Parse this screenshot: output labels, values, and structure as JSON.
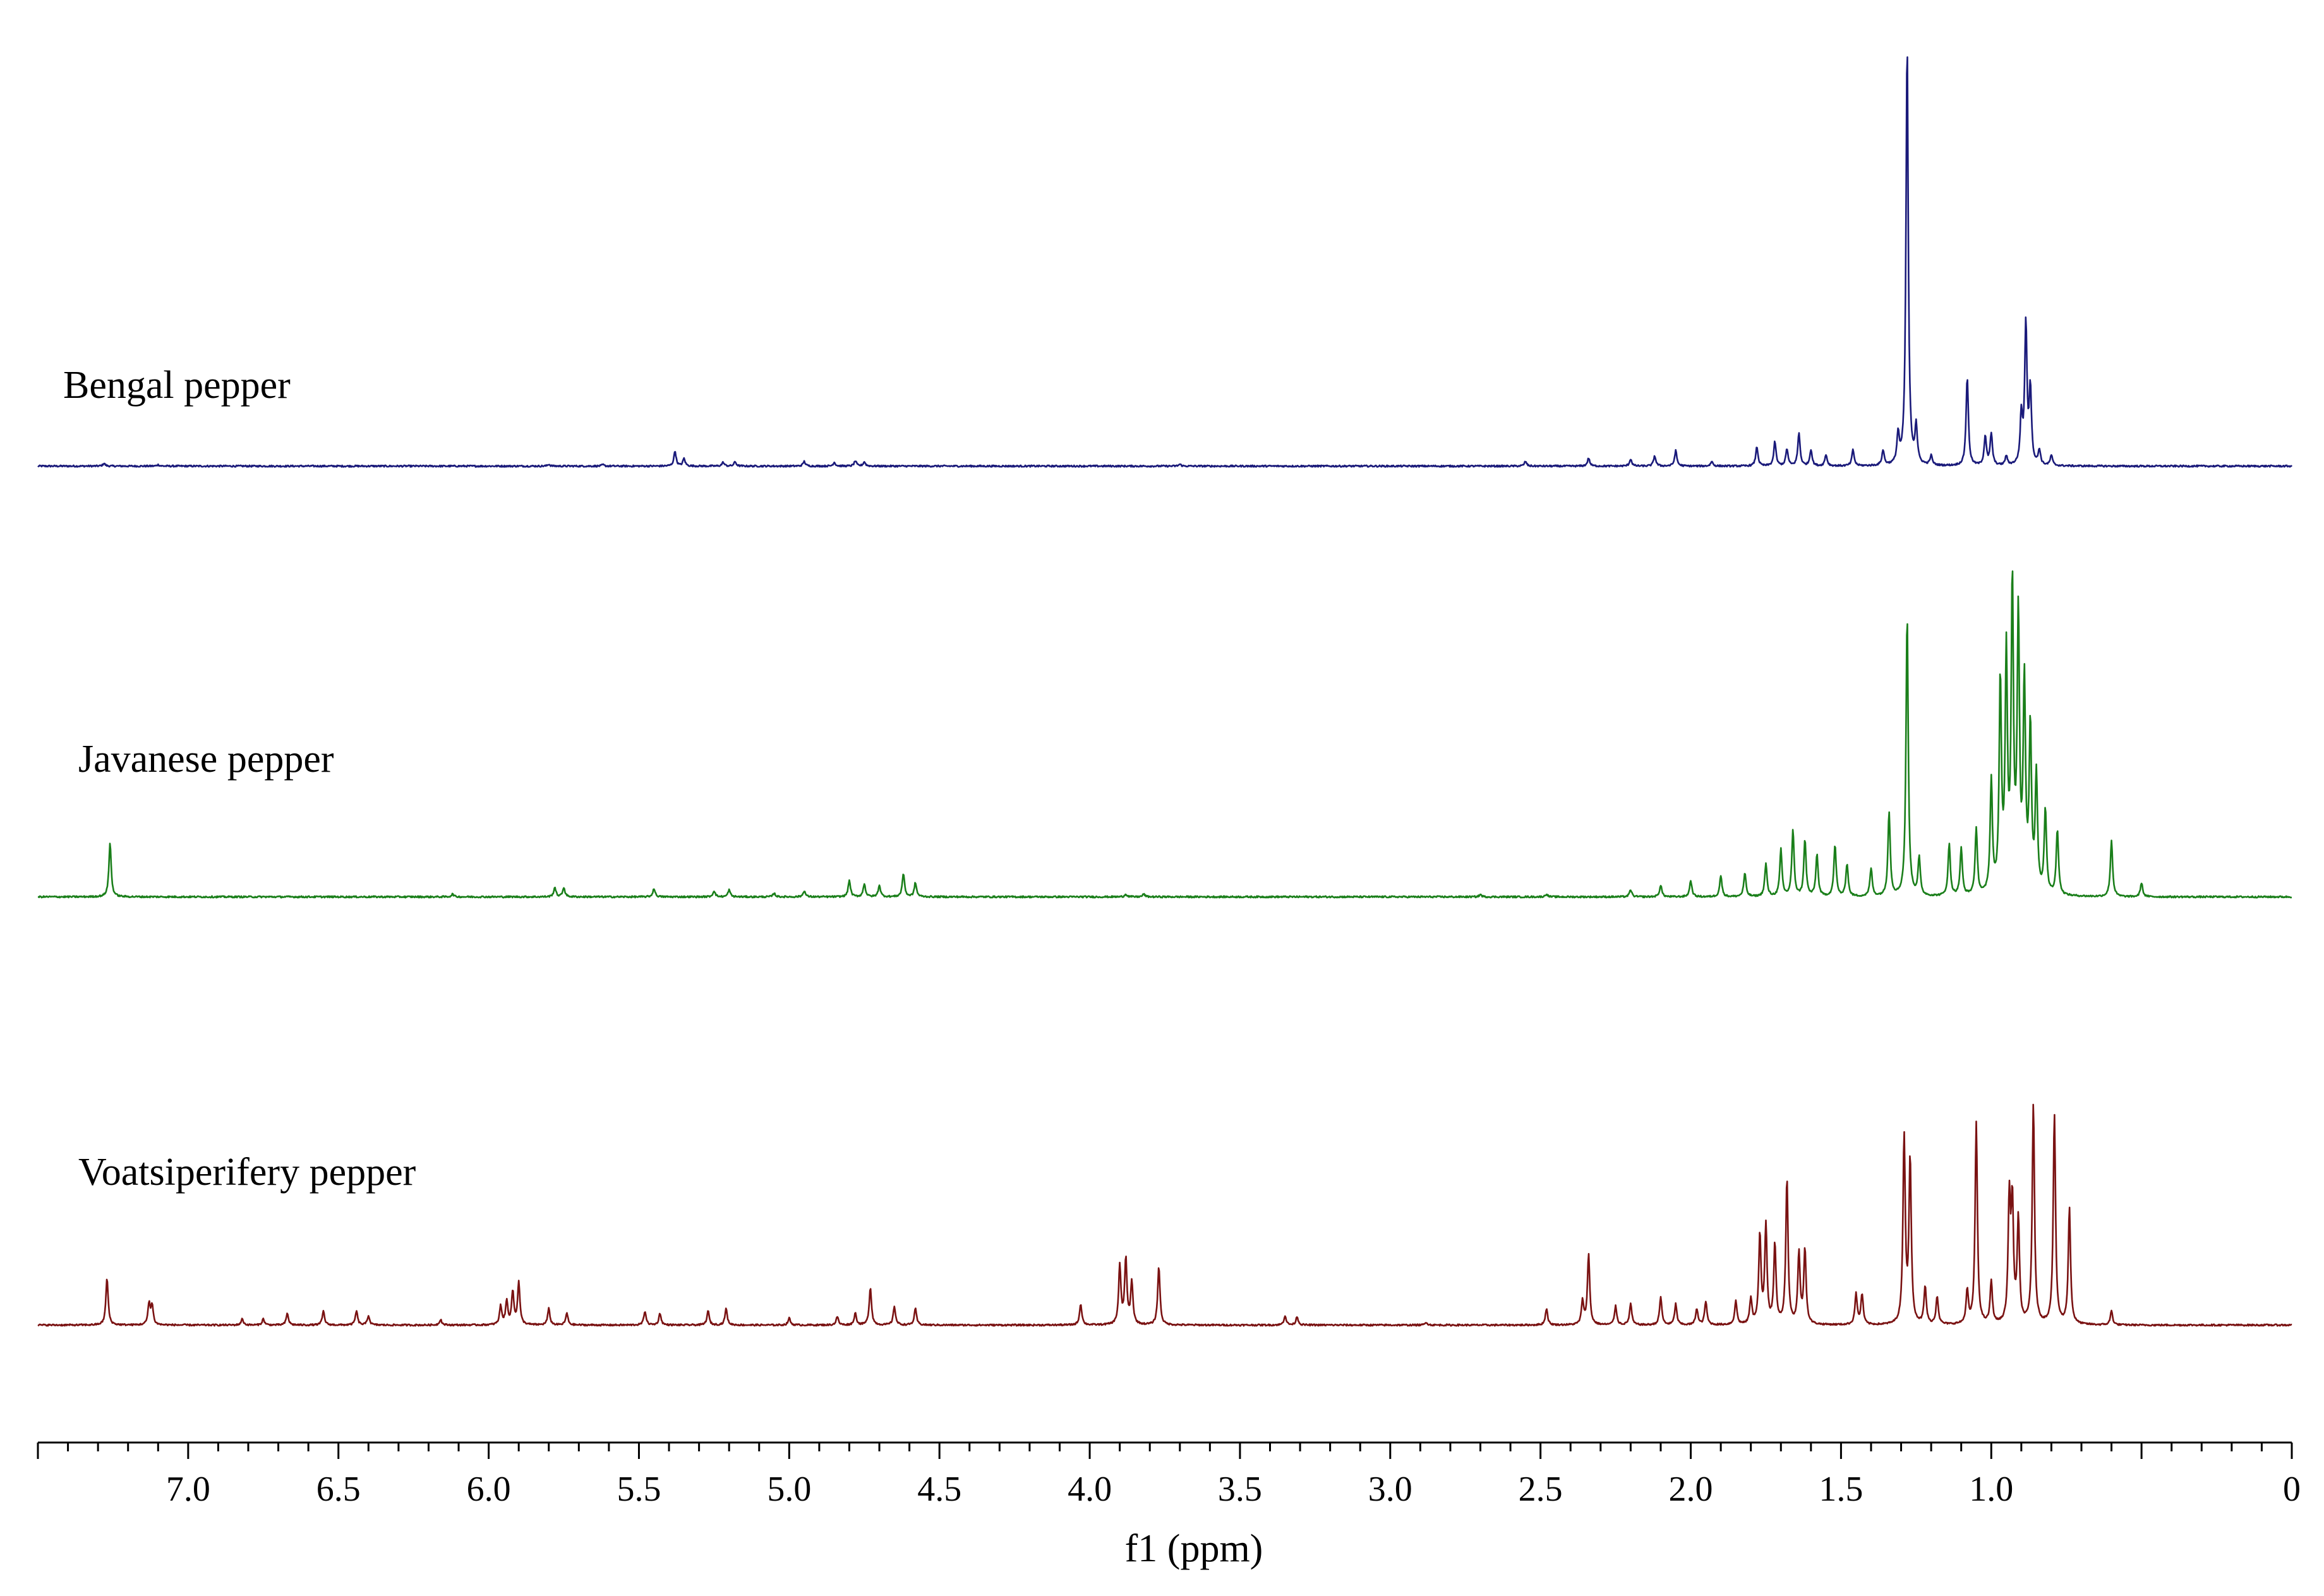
{
  "chart_data": {
    "type": "line",
    "xlabel": "f1 (ppm)",
    "xlim": [
      7.5,
      0
    ],
    "x_reversed": true,
    "x_ticks": [
      "7.0",
      "6.5",
      "6.0",
      "5.5",
      "5.0",
      "4.5",
      "4.0",
      "3.5",
      "3.0",
      "2.5",
      "2.0",
      "1.5",
      "1.0",
      "0"
    ],
    "y_axis_shown": false,
    "grid": false,
    "legend": "none; series names printed above each trace",
    "series": [
      {
        "name": "Bengal pepper",
        "color": "#1a1a7a",
        "peaks": [
          [
            7.28,
            0.6
          ],
          [
            7.1,
            0.3
          ],
          [
            5.8,
            0.4
          ],
          [
            5.62,
            0.3
          ],
          [
            5.38,
            3.2
          ],
          [
            5.35,
            1.6
          ],
          [
            5.22,
            0.8
          ],
          [
            5.18,
            0.9
          ],
          [
            4.95,
            1.0
          ],
          [
            4.85,
            0.8
          ],
          [
            4.78,
            1.1
          ],
          [
            4.75,
            0.9
          ],
          [
            3.7,
            0.4
          ],
          [
            2.55,
            1.0
          ],
          [
            2.34,
            1.7
          ],
          [
            2.2,
            1.5
          ],
          [
            2.12,
            2.2
          ],
          [
            2.05,
            3.3
          ],
          [
            1.93,
            1.0
          ],
          [
            1.78,
            4.1
          ],
          [
            1.72,
            5.2
          ],
          [
            1.68,
            3.6
          ],
          [
            1.64,
            7.0
          ],
          [
            1.6,
            3.5
          ],
          [
            1.55,
            2.4
          ],
          [
            1.46,
            3.4
          ],
          [
            1.36,
            3.2
          ],
          [
            1.31,
            6.2
          ],
          [
            1.28,
            90.0
          ],
          [
            1.25,
            8.0
          ],
          [
            1.2,
            2.0
          ],
          [
            1.08,
            19.0
          ],
          [
            1.02,
            6.3
          ],
          [
            1.0,
            6.8
          ],
          [
            0.95,
            2.0
          ],
          [
            0.9,
            10.3
          ],
          [
            0.885,
            30.0
          ],
          [
            0.87,
            16.0
          ],
          [
            0.84,
            3.2
          ],
          [
            0.8,
            2.2
          ]
        ]
      },
      {
        "name": "Javanese pepper",
        "color": "#1a7f1a",
        "peaks": [
          [
            7.26,
            11.5
          ],
          [
            6.12,
            0.6
          ],
          [
            5.78,
            2.0
          ],
          [
            5.75,
            2.0
          ],
          [
            5.45,
            1.8
          ],
          [
            5.25,
            1.3
          ],
          [
            5.2,
            1.5
          ],
          [
            5.05,
            0.8
          ],
          [
            4.95,
            1.3
          ],
          [
            4.8,
            3.5
          ],
          [
            4.75,
            2.8
          ],
          [
            4.7,
            2.5
          ],
          [
            4.62,
            5.0
          ],
          [
            4.58,
            3.0
          ],
          [
            3.88,
            0.6
          ],
          [
            3.82,
            0.6
          ],
          [
            2.7,
            0.5
          ],
          [
            2.48,
            0.6
          ],
          [
            2.2,
            1.5
          ],
          [
            2.1,
            2.5
          ],
          [
            2.0,
            3.5
          ],
          [
            1.9,
            4.5
          ],
          [
            1.82,
            5.0
          ],
          [
            1.75,
            7.0
          ],
          [
            1.7,
            10.0
          ],
          [
            1.66,
            14.0
          ],
          [
            1.62,
            12.0
          ],
          [
            1.58,
            9.0
          ],
          [
            1.52,
            11.0
          ],
          [
            1.48,
            7.0
          ],
          [
            1.4,
            6.0
          ],
          [
            1.34,
            18.0
          ],
          [
            1.28,
            60.0
          ],
          [
            1.24,
            8.0
          ],
          [
            1.14,
            11.0
          ],
          [
            1.1,
            10.0
          ],
          [
            1.05,
            14.0
          ],
          [
            1.0,
            24.0
          ],
          [
            0.97,
            45.0
          ],
          [
            0.95,
            50.0
          ],
          [
            0.93,
            65.0
          ],
          [
            0.91,
            58.0
          ],
          [
            0.89,
            44.0
          ],
          [
            0.87,
            35.0
          ],
          [
            0.85,
            25.0
          ],
          [
            0.82,
            18.0
          ],
          [
            0.78,
            14.0
          ],
          [
            0.6,
            12.0
          ],
          [
            0.5,
            3.0
          ]
        ]
      },
      {
        "name": "Voatsiperifery pepper",
        "color": "#7a1212",
        "peaks": [
          [
            7.27,
            10.0
          ],
          [
            7.13,
            4.5
          ],
          [
            7.12,
            4.0
          ],
          [
            6.82,
            1.3
          ],
          [
            6.75,
            1.3
          ],
          [
            6.67,
            2.5
          ],
          [
            6.55,
            3.0
          ],
          [
            6.44,
            3.0
          ],
          [
            6.4,
            2.0
          ],
          [
            6.16,
            1.2
          ],
          [
            5.96,
            4.0
          ],
          [
            5.94,
            5.0
          ],
          [
            5.92,
            7.0
          ],
          [
            5.9,
            9.0
          ],
          [
            5.8,
            3.5
          ],
          [
            5.74,
            2.5
          ],
          [
            5.48,
            3.0
          ],
          [
            5.43,
            2.5
          ],
          [
            5.27,
            3.0
          ],
          [
            5.21,
            3.5
          ],
          [
            5.0,
            1.5
          ],
          [
            4.84,
            1.8
          ],
          [
            4.78,
            2.5
          ],
          [
            4.73,
            8.0
          ],
          [
            4.65,
            4.0
          ],
          [
            4.58,
            3.5
          ],
          [
            4.03,
            4.5
          ],
          [
            3.9,
            12.5
          ],
          [
            3.88,
            14.0
          ],
          [
            3.86,
            9.0
          ],
          [
            3.77,
            12.5
          ],
          [
            3.35,
            2.0
          ],
          [
            3.31,
            1.8
          ],
          [
            2.88,
            0.6
          ],
          [
            2.48,
            3.5
          ],
          [
            2.36,
            5.0
          ],
          [
            2.34,
            15.0
          ],
          [
            2.25,
            4.0
          ],
          [
            2.2,
            4.5
          ],
          [
            2.1,
            6.0
          ],
          [
            2.05,
            4.5
          ],
          [
            1.98,
            3.5
          ],
          [
            1.95,
            5.0
          ],
          [
            1.85,
            5.0
          ],
          [
            1.8,
            5.5
          ],
          [
            1.77,
            19.0
          ],
          [
            1.75,
            21.0
          ],
          [
            1.72,
            17.0
          ],
          [
            1.68,
            31.0
          ],
          [
            1.64,
            15.0
          ],
          [
            1.62,
            16.0
          ],
          [
            1.45,
            6.5
          ],
          [
            1.43,
            6.5
          ],
          [
            1.29,
            40.0
          ],
          [
            1.27,
            35.0
          ],
          [
            1.22,
            8.0
          ],
          [
            1.18,
            6.0
          ],
          [
            1.08,
            7.0
          ],
          [
            1.05,
            43.0
          ],
          [
            1.0,
            9.0
          ],
          [
            0.94,
            26.0
          ],
          [
            0.93,
            25.0
          ],
          [
            0.91,
            22.0
          ],
          [
            0.86,
            47.0
          ],
          [
            0.79,
            45.0
          ],
          [
            0.74,
            25.0
          ],
          [
            0.6,
            3.0
          ]
        ]
      }
    ]
  }
}
